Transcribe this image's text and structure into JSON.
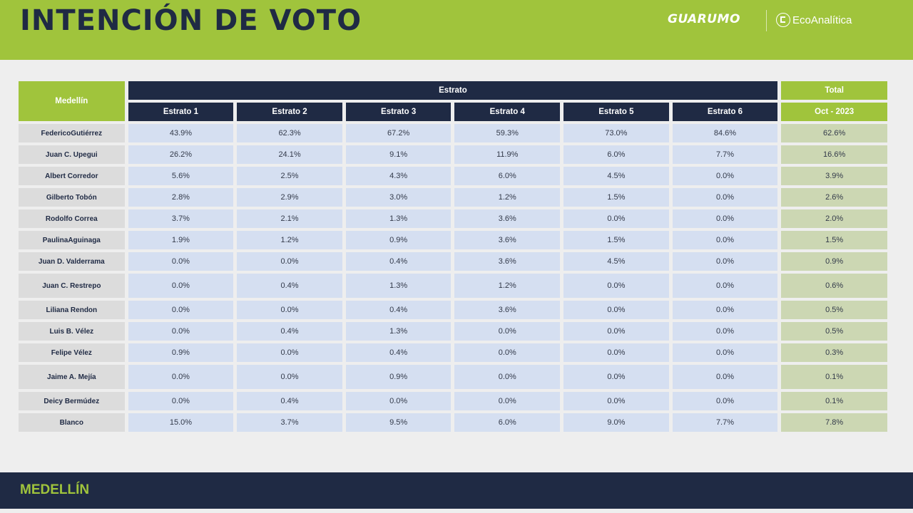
{
  "header": {
    "title": "INTENCIÓN DE VOTO",
    "logo_guarumo": "GUARUMO",
    "logo_eco": "EcoAnalítica"
  },
  "table": {
    "city_label": "Medellín",
    "group_label": "Estrato",
    "total_label": "Total",
    "total_period": "Oct - 2023",
    "columns": [
      "Estrato 1",
      "Estrato 2",
      "Estrato 3",
      "Estrato 4",
      "Estrato 5",
      "Estrato 6"
    ],
    "rows": [
      {
        "name": "FedericoGutiérrez",
        "values": [
          "43.9%",
          "62.3%",
          "67.2%",
          "59.3%",
          "73.0%",
          "84.6%"
        ],
        "total": "62.6%"
      },
      {
        "name": "Juan C. Upegui",
        "values": [
          "26.2%",
          "24.1%",
          "9.1%",
          "11.9%",
          "6.0%",
          "7.7%"
        ],
        "total": "16.6%"
      },
      {
        "name": "Albert Corredor",
        "values": [
          "5.6%",
          "2.5%",
          "4.3%",
          "6.0%",
          "4.5%",
          "0.0%"
        ],
        "total": "3.9%"
      },
      {
        "name": "Gilberto Tobón",
        "values": [
          "2.8%",
          "2.9%",
          "3.0%",
          "1.2%",
          "1.5%",
          "0.0%"
        ],
        "total": "2.6%"
      },
      {
        "name": "Rodolfo Correa",
        "values": [
          "3.7%",
          "2.1%",
          "1.3%",
          "3.6%",
          "0.0%",
          "0.0%"
        ],
        "total": "2.0%"
      },
      {
        "name": "PaulinaAguinaga",
        "values": [
          "1.9%",
          "1.2%",
          "0.9%",
          "3.6%",
          "1.5%",
          "0.0%"
        ],
        "total": "1.5%"
      },
      {
        "name": "Juan D. Valderrama",
        "values": [
          "0.0%",
          "0.0%",
          "0.4%",
          "3.6%",
          "4.5%",
          "0.0%"
        ],
        "total": "0.9%"
      },
      {
        "name": "Juan C. Restrepo",
        "values": [
          "0.0%",
          "0.4%",
          "1.3%",
          "1.2%",
          "0.0%",
          "0.0%"
        ],
        "total": "0.6%"
      },
      {
        "name": "Liliana Rendon",
        "values": [
          "0.0%",
          "0.0%",
          "0.4%",
          "3.6%",
          "0.0%",
          "0.0%"
        ],
        "total": "0.5%"
      },
      {
        "name": "Luis B. Vélez",
        "values": [
          "0.0%",
          "0.4%",
          "1.3%",
          "0.0%",
          "0.0%",
          "0.0%"
        ],
        "total": "0.5%"
      },
      {
        "name": "Felipe Vélez",
        "values": [
          "0.9%",
          "0.0%",
          "0.4%",
          "0.0%",
          "0.0%",
          "0.0%"
        ],
        "total": "0.3%"
      },
      {
        "name": "Jaime A. Mejía",
        "values": [
          "0.0%",
          "0.0%",
          "0.9%",
          "0.0%",
          "0.0%",
          "0.0%"
        ],
        "total": "0.1%"
      },
      {
        "name": "Deicy Bermúdez",
        "values": [
          "0.0%",
          "0.4%",
          "0.0%",
          "0.0%",
          "0.0%",
          "0.0%"
        ],
        "total": "0.1%"
      },
      {
        "name": "Blanco",
        "values": [
          "15.0%",
          "3.7%",
          "9.5%",
          "6.0%",
          "9.0%",
          "7.7%"
        ],
        "total": "7.8%"
      }
    ]
  },
  "footer": {
    "label": "MEDELLÍN"
  }
}
